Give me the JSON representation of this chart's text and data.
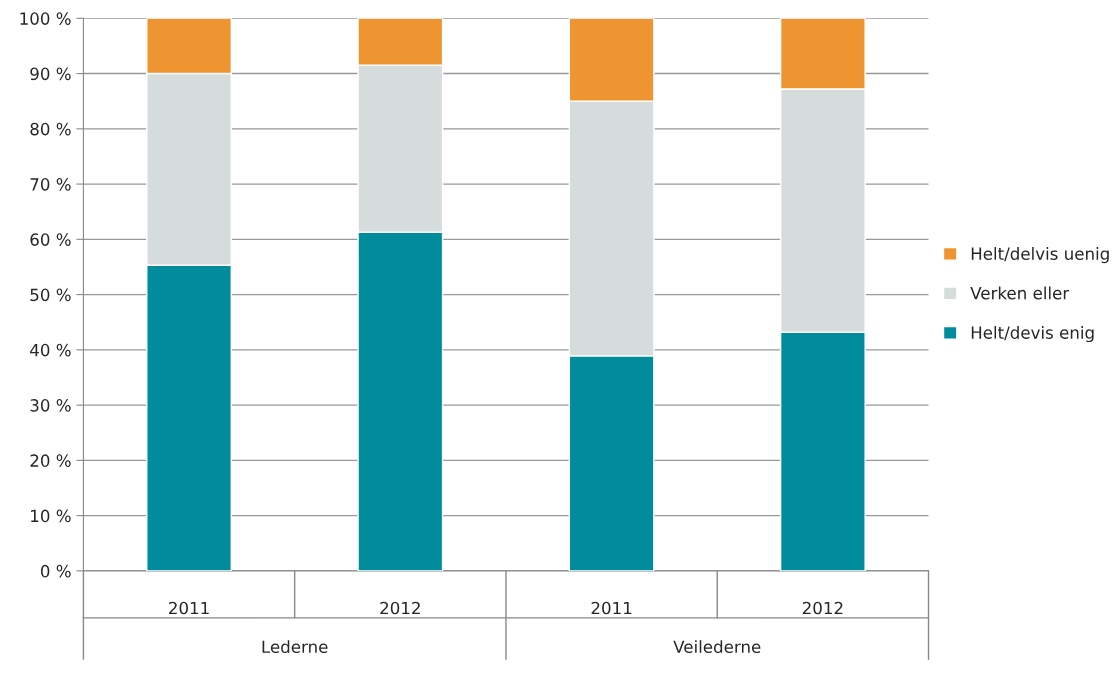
{
  "chart_data": {
    "type": "bar",
    "stacked": true,
    "categories": [
      "2011",
      "2012",
      "2011",
      "2012"
    ],
    "series": [
      {
        "name": "Helt/devis enig",
        "color": "#008c9c",
        "values": [
          55.3,
          61.3,
          38.9,
          43.2
        ]
      },
      {
        "name": "Verken eller",
        "color": "#d6dcdc",
        "values": [
          34.7,
          30.2,
          46.1,
          44.0
        ]
      },
      {
        "name": "Helt/delvis uenig",
        "color": "#ee9430",
        "values": [
          10.0,
          8.5,
          15.0,
          12.8
        ]
      }
    ],
    "ylim": [
      0,
      100
    ],
    "yticks": [
      {
        "value": 0,
        "label": "0 %"
      },
      {
        "value": 10,
        "label": "10 %"
      },
      {
        "value": 20,
        "label": "20 %"
      },
      {
        "value": 30,
        "label": "30 %"
      },
      {
        "value": 40,
        "label": "40 %"
      },
      {
        "value": 50,
        "label": "50 %"
      },
      {
        "value": 60,
        "label": "60 %"
      },
      {
        "value": 70,
        "label": "70 %"
      },
      {
        "value": 80,
        "label": "80 %"
      },
      {
        "value": 90,
        "label": "90 %"
      },
      {
        "value": 100,
        "label": "100 %"
      }
    ],
    "annotations": [
      "Lederne",
      "Veilederne"
    ],
    "grid": "y",
    "legend": "right"
  }
}
